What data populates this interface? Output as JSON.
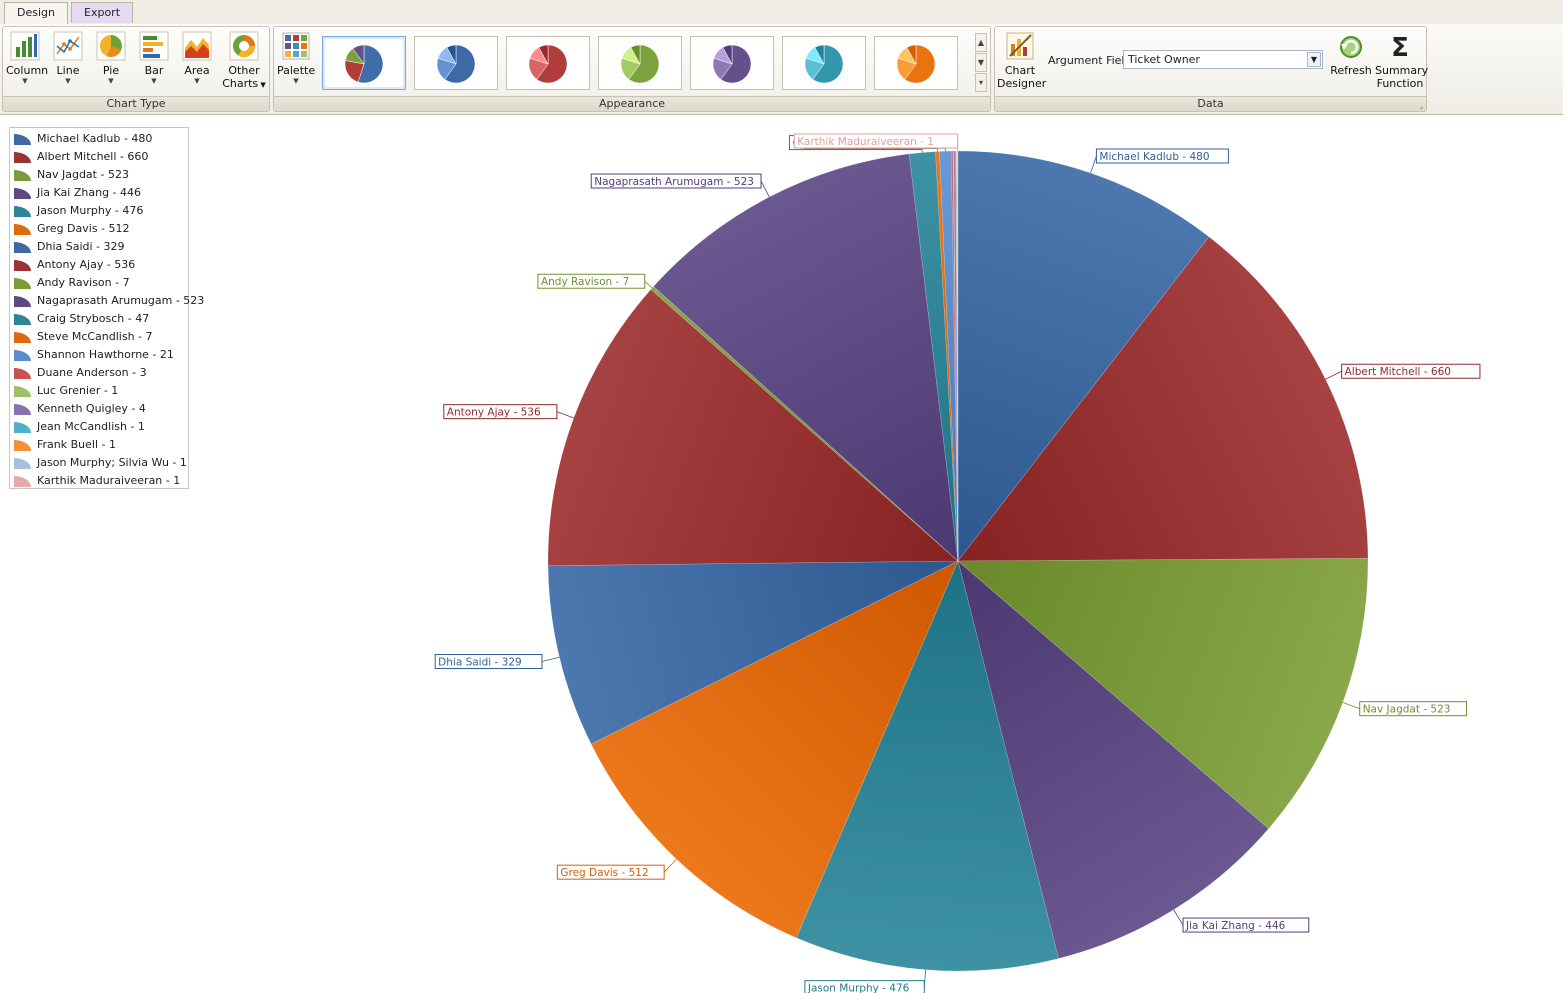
{
  "tabs": [
    "Design",
    "Export"
  ],
  "ribbon": {
    "chart_type_buttons": [
      {
        "label": "Column",
        "icon": "column-chart-icon"
      },
      {
        "label": "Line",
        "icon": "line-chart-icon"
      },
      {
        "label": "Pie",
        "icon": "pie-chart-icon"
      },
      {
        "label": "Bar",
        "icon": "bar-chart-icon"
      },
      {
        "label": "Area",
        "icon": "area-chart-icon"
      },
      {
        "label": "Other Charts",
        "line1": "Other",
        "line2": "Charts",
        "icon": "doughnut-chart-icon"
      }
    ],
    "chart_type_group_label": "Chart Type",
    "palette_label": "Palette",
    "appearance_group_label": "Appearance",
    "appearance_palettes": [
      "#3f6ea8",
      "#3d6aa6",
      "#b03c3c",
      "#7aa33c",
      "#65508c",
      "#3296ad",
      "#e8730f"
    ],
    "chart_designer_label": "Chart Designer",
    "chart_designer_line1": "Chart",
    "chart_designer_line2": "Designer",
    "argument_field_label": "Argument Field",
    "argument_field_value": "Ticket Owner",
    "refresh_label": "Refresh",
    "summary_function_label": "Summary Function",
    "summary_line1": "Summary",
    "summary_line2": "Function",
    "data_group_label": "Data"
  },
  "chart_data": {
    "type": "pie",
    "categories": [
      "Michael Kadlub",
      "Albert Mitchell",
      "Nav Jagdat",
      "Jia Kai Zhang",
      "Jason Murphy",
      "Greg Davis",
      "Dhia Saidi",
      "Antony Ajay",
      "Andy Ravison",
      "Nagaprasath Arumugam",
      "Craig Strybosch",
      "Steve McCandlish",
      "Shannon Hawthorne",
      "Duane Anderson",
      "Luc Grenier",
      "Kenneth Quigley",
      "Jean McCandlish",
      "Frank Buell",
      "Jason Murphy; Silvia Wu",
      "Karthik Maduraiveeran"
    ],
    "values": [
      480,
      660,
      523,
      446,
      476,
      512,
      329,
      536,
      7,
      523,
      47,
      7,
      21,
      3,
      1,
      4,
      1,
      1,
      1,
      1
    ],
    "legend_labels": [
      "Michael Kadlub - 480",
      "Albert Mitchell - 660",
      "Nav Jagdat - 523",
      "Jia Kai Zhang - 446",
      "Jason Murphy - 476",
      "Greg Davis - 512",
      "Dhia Saidi - 329",
      "Antony Ajay - 536",
      "Andy Ravison - 7",
      "Nagaprasath Arumugam - 523",
      "Craig Strybosch - 47",
      "Steve McCandlish - 7",
      "Shannon Hawthorne - 21",
      "Duane Anderson - 3",
      "Luc Grenier - 1",
      "Kenneth Quigley - 4",
      "Jean McCandlish - 1",
      "Frank Buell - 1",
      "Jason Murphy; Silvia Wu - 1",
      "Karthik Maduraiveeran - 1"
    ],
    "colors": [
      "#3e6aa1",
      "#983434",
      "#7b9a3c",
      "#5d4a82",
      "#2f8496",
      "#df6a0e",
      "#3e6aa1",
      "#983434",
      "#7b9a3c",
      "#5d4a82",
      "#2f8496",
      "#df6a0e",
      "#5b8bc9",
      "#c75252",
      "#9cc16a",
      "#8a72b0",
      "#4fb0c6",
      "#f2903c",
      "#a7c0e0",
      "#e5a9a9"
    ],
    "legend_placement": "top-left",
    "visible_point_labels": [
      "Michael Kadlub - 480",
      "Albert Mitchell - 660",
      "Nav Jagdat - 523",
      "Jia Kai Zhang - 446",
      "Jason Murphy - 476",
      "Greg Davis - 512",
      "Dhia Saidi - 329",
      "Antony Ajay - 536",
      "Andy Ravison - 7",
      "Nagaprasath Arumugam - 523",
      "Craig Strybosch - 47",
      "Steve McCandlish - 7",
      "Shannon Hawthorne - 21",
      "Karthik Maduraiveeran - 1"
    ]
  }
}
